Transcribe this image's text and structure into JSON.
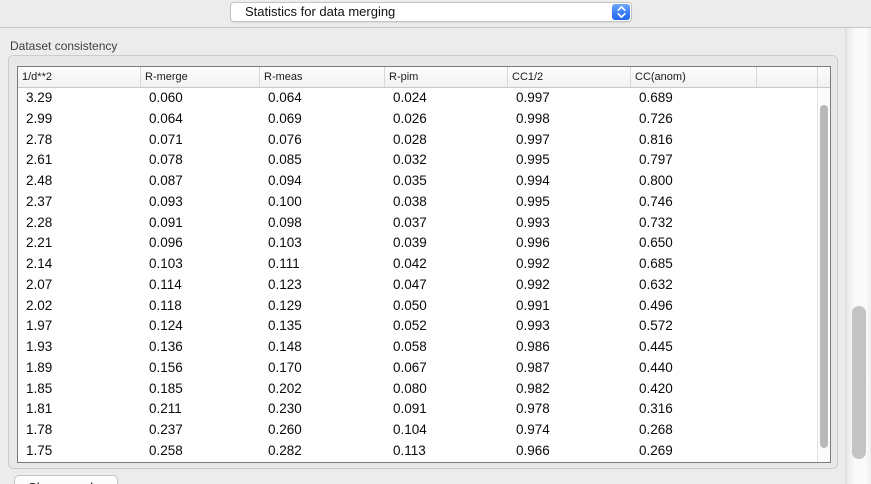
{
  "toolbar": {
    "mode_dropdown": {
      "value": "Statistics for data merging"
    }
  },
  "section": {
    "label": "Dataset consistency"
  },
  "table": {
    "columns": [
      "1/d**2",
      "R-merge",
      "R-meas",
      "R-pim",
      "CC1/2",
      "CC(anom)"
    ],
    "rows": [
      [
        "3.29",
        "0.060",
        "0.064",
        "0.024",
        "0.997",
        "0.689"
      ],
      [
        "2.99",
        "0.064",
        "0.069",
        "0.026",
        "0.998",
        "0.726"
      ],
      [
        "2.78",
        "0.071",
        "0.076",
        "0.028",
        "0.997",
        "0.816"
      ],
      [
        "2.61",
        "0.078",
        "0.085",
        "0.032",
        "0.995",
        "0.797"
      ],
      [
        "2.48",
        "0.087",
        "0.094",
        "0.035",
        "0.994",
        "0.800"
      ],
      [
        "2.37",
        "0.093",
        "0.100",
        "0.038",
        "0.995",
        "0.746"
      ],
      [
        "2.28",
        "0.091",
        "0.098",
        "0.037",
        "0.993",
        "0.732"
      ],
      [
        "2.21",
        "0.096",
        "0.103",
        "0.039",
        "0.996",
        "0.650"
      ],
      [
        "2.14",
        "0.103",
        "0.111",
        "0.042",
        "0.992",
        "0.685"
      ],
      [
        "2.07",
        "0.114",
        "0.123",
        "0.047",
        "0.992",
        "0.632"
      ],
      [
        "2.02",
        "0.118",
        "0.129",
        "0.050",
        "0.991",
        "0.496"
      ],
      [
        "1.97",
        "0.124",
        "0.135",
        "0.052",
        "0.993",
        "0.572"
      ],
      [
        "1.93",
        "0.136",
        "0.148",
        "0.058",
        "0.986",
        "0.445"
      ],
      [
        "1.89",
        "0.156",
        "0.170",
        "0.067",
        "0.987",
        "0.440"
      ],
      [
        "1.85",
        "0.185",
        "0.202",
        "0.080",
        "0.982",
        "0.420"
      ],
      [
        "1.81",
        "0.211",
        "0.230",
        "0.091",
        "0.978",
        "0.316"
      ],
      [
        "1.78",
        "0.237",
        "0.260",
        "0.104",
        "0.974",
        "0.268"
      ],
      [
        "1.75",
        "0.258",
        "0.282",
        "0.113",
        "0.966",
        "0.269"
      ]
    ]
  },
  "footer": {
    "show_graphs_label": "Show graphs"
  },
  "colors": {
    "window_bg": "#ECECEC",
    "accent_blue": "#3B7DF4",
    "table_border": "#7A7A7A",
    "scroll_thumb": "#BDBDBD"
  }
}
